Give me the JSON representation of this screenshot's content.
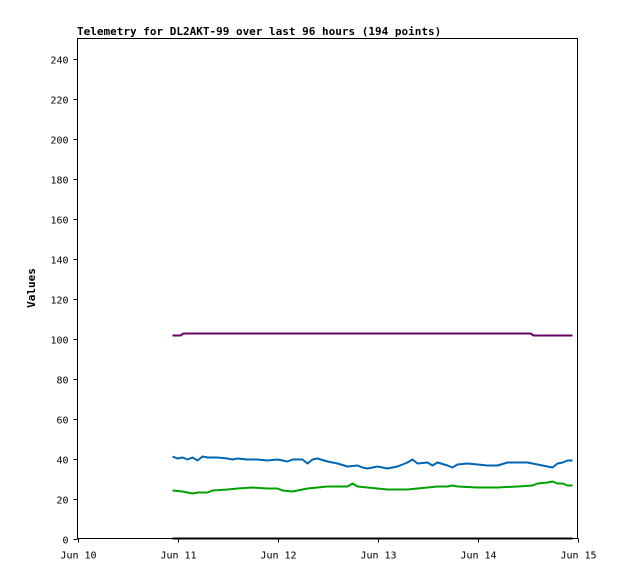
{
  "chart_data": {
    "type": "line",
    "title": "Telemetry for DL2AKT-99 over last 96 hours (194 points)",
    "xlabel": "",
    "ylabel": "Values",
    "xlim": [
      "Jun 10",
      "Jun 15"
    ],
    "ylim": [
      0,
      250
    ],
    "x_ticks": [
      "Jun 10",
      "Jun 11",
      "Jun 12",
      "Jun 13",
      "Jun 14",
      "Jun 15"
    ],
    "y_ticks": [
      0,
      20,
      40,
      60,
      80,
      100,
      120,
      140,
      160,
      180,
      200,
      220,
      240
    ],
    "grid": false,
    "legend": "none",
    "series": [
      {
        "color": "#660066",
        "points": [
          [
            0.95,
            101.5
          ],
          [
            1.03,
            101.5
          ],
          [
            1.06,
            102.5
          ],
          [
            1.5,
            102.5
          ],
          [
            2.0,
            102.5
          ],
          [
            2.5,
            102.5
          ],
          [
            3.0,
            102.5
          ],
          [
            3.5,
            102.5
          ],
          [
            4.0,
            102.5
          ],
          [
            4.5,
            102.5
          ],
          [
            4.53,
            102.5
          ],
          [
            4.56,
            101.5
          ],
          [
            4.8,
            101.5
          ],
          [
            4.95,
            101.5
          ]
        ]
      },
      {
        "color": "#0066b3",
        "points": [
          [
            0.95,
            41
          ],
          [
            1.0,
            40
          ],
          [
            1.05,
            40.5
          ],
          [
            1.1,
            39.5
          ],
          [
            1.15,
            40.5
          ],
          [
            1.2,
            39
          ],
          [
            1.25,
            41
          ],
          [
            1.3,
            40.5
          ],
          [
            1.4,
            40.5
          ],
          [
            1.5,
            40
          ],
          [
            1.55,
            39.5
          ],
          [
            1.6,
            40
          ],
          [
            1.7,
            39.5
          ],
          [
            1.8,
            39.5
          ],
          [
            1.9,
            39
          ],
          [
            2.0,
            39.5
          ],
          [
            2.1,
            38.5
          ],
          [
            2.15,
            39.5
          ],
          [
            2.25,
            39.5
          ],
          [
            2.3,
            37.5
          ],
          [
            2.35,
            39.5
          ],
          [
            2.4,
            40
          ],
          [
            2.5,
            38.5
          ],
          [
            2.6,
            37.5
          ],
          [
            2.7,
            36
          ],
          [
            2.8,
            36.5
          ],
          [
            2.85,
            35.5
          ],
          [
            2.9,
            35
          ],
          [
            3.0,
            36
          ],
          [
            3.1,
            35
          ],
          [
            3.2,
            36
          ],
          [
            3.25,
            37
          ],
          [
            3.3,
            38
          ],
          [
            3.35,
            39.5
          ],
          [
            3.4,
            37.5
          ],
          [
            3.5,
            38
          ],
          [
            3.55,
            36.5
          ],
          [
            3.6,
            38
          ],
          [
            3.7,
            36.5
          ],
          [
            3.75,
            35.5
          ],
          [
            3.8,
            37
          ],
          [
            3.9,
            37.5
          ],
          [
            4.0,
            37
          ],
          [
            4.1,
            36.5
          ],
          [
            4.2,
            36.5
          ],
          [
            4.3,
            38
          ],
          [
            4.5,
            38
          ],
          [
            4.6,
            37
          ],
          [
            4.7,
            36
          ],
          [
            4.75,
            35.5
          ],
          [
            4.8,
            37.5
          ],
          [
            4.85,
            38
          ],
          [
            4.9,
            39
          ],
          [
            4.95,
            39
          ]
        ]
      },
      {
        "color": "#00a000",
        "points": [
          [
            0.95,
            24
          ],
          [
            1.05,
            23.5
          ],
          [
            1.1,
            23
          ],
          [
            1.15,
            22.5
          ],
          [
            1.2,
            23
          ],
          [
            1.3,
            23
          ],
          [
            1.35,
            24
          ],
          [
            1.5,
            24.5
          ],
          [
            1.6,
            25
          ],
          [
            1.75,
            25.5
          ],
          [
            1.9,
            25
          ],
          [
            2.0,
            25
          ],
          [
            2.05,
            24
          ],
          [
            2.15,
            23.5
          ],
          [
            2.2,
            24
          ],
          [
            2.3,
            25
          ],
          [
            2.4,
            25.5
          ],
          [
            2.5,
            26
          ],
          [
            2.7,
            26
          ],
          [
            2.75,
            27.5
          ],
          [
            2.8,
            26
          ],
          [
            3.0,
            25
          ],
          [
            3.1,
            24.5
          ],
          [
            3.3,
            24.5
          ],
          [
            3.4,
            25
          ],
          [
            3.5,
            25.5
          ],
          [
            3.6,
            26
          ],
          [
            3.7,
            26
          ],
          [
            3.75,
            26.5
          ],
          [
            3.8,
            26
          ],
          [
            4.0,
            25.5
          ],
          [
            4.2,
            25.5
          ],
          [
            4.4,
            26
          ],
          [
            4.55,
            26.5
          ],
          [
            4.6,
            27.5
          ],
          [
            4.7,
            28
          ],
          [
            4.75,
            28.5
          ],
          [
            4.8,
            27.5
          ],
          [
            4.85,
            27.5
          ],
          [
            4.9,
            26.5
          ],
          [
            4.95,
            26.5
          ]
        ]
      },
      {
        "color": "#000000",
        "points": [
          [
            0.95,
            0
          ],
          [
            4.95,
            0
          ]
        ]
      }
    ]
  }
}
